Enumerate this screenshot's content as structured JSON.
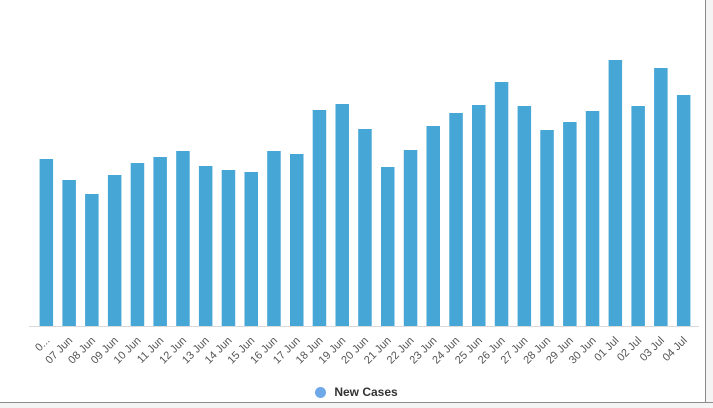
{
  "colors": {
    "bar": "#46a6d6",
    "legend_marker": "#6fa8e8",
    "axis": "#d9d9d9"
  },
  "legend": {
    "label": "New Cases"
  },
  "chart_data": {
    "type": "bar",
    "categories": [
      "0...",
      "07 Jun",
      "08 Jun",
      "09 Jun",
      "10 Jun",
      "11 Jun",
      "12 Jun",
      "13 Jun",
      "14 Jun",
      "15 Jun",
      "16 Jun",
      "17 Jun",
      "18 Jun",
      "19 Jun",
      "20 Jun",
      "21 Jun",
      "22 Jun",
      "23 Jun",
      "24 Jun",
      "25 Jun",
      "26 Jun",
      "27 Jun",
      "28 Jun",
      "29 Jun",
      "30 Jun",
      "01 Jul",
      "02 Jul",
      "03 Jul",
      "04 Jul"
    ],
    "series": [
      {
        "name": "New Cases",
        "values": [
          167,
          146,
          132,
          151,
          163,
          169,
          175,
          160,
          156,
          154,
          175,
          172,
          216,
          222,
          197,
          159,
          176,
          200,
          213,
          221,
          244,
          220,
          196,
          204,
          215,
          266,
          220,
          258,
          231
        ]
      }
    ],
    "ylim": [
      0,
      300
    ],
    "grid": false,
    "legend_position": "bottom-center",
    "title": "",
    "xlabel": "",
    "ylabel": ""
  }
}
